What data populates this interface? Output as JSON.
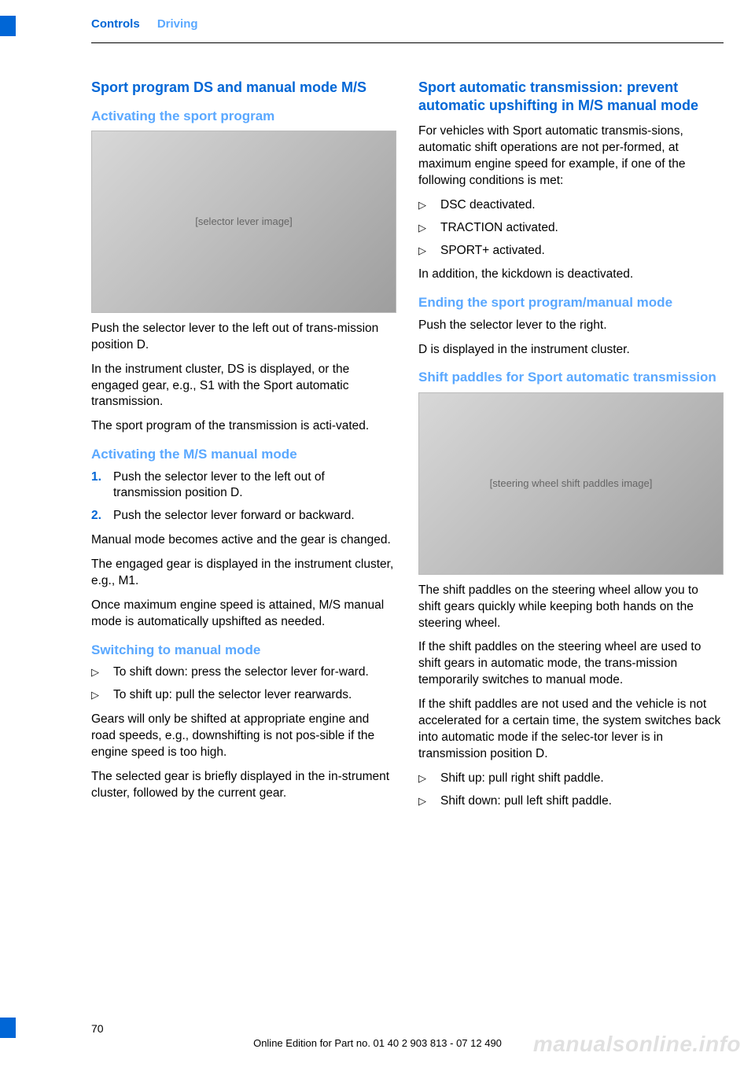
{
  "header": {
    "section": "Controls",
    "subsection": "Driving"
  },
  "left": {
    "h1": "Sport program DS and manual mode M/S",
    "s1": {
      "title": "Activating the sport program",
      "img_alt": "[selector lever image]",
      "p1": "Push the selector lever to the left out of trans‐mission position D.",
      "p2": "In the instrument cluster, DS is displayed, or the engaged gear, e.g., S1 with the Sport automatic transmission.",
      "p3": "The sport program of the transmission is acti‐vated."
    },
    "s2": {
      "title": "Activating the M/S manual mode",
      "li1": "Push the selector lever to the left out of transmission position D.",
      "li2": "Push the selector lever forward or backward.",
      "p1": "Manual mode becomes active and the gear is changed.",
      "p2": "The engaged gear is displayed in the instrument cluster, e.g., M1.",
      "p3": "Once maximum engine speed is attained, M/S manual mode is automatically upshifted as needed."
    },
    "s3": {
      "title": "Switching to manual mode",
      "li1": "To shift down: press the selector lever for‐ward.",
      "li2": "To shift up: pull the selector lever rearwards.",
      "p1": "Gears will only be shifted at appropriate engine and road speeds, e.g., downshifting is not pos‐sible if the engine speed is too high.",
      "p2": "The selected gear is briefly displayed in the in‐strument cluster, followed by the current gear."
    }
  },
  "right": {
    "s1": {
      "title": "Sport automatic transmission: prevent automatic upshifting in M/S manual mode",
      "p1": "For vehicles with Sport automatic transmis‐sions, automatic shift operations are not per‐formed, at maximum engine speed for example, if one of the following conditions is met:",
      "li1": "DSC deactivated.",
      "li2": "TRACTION activated.",
      "li3": "SPORT+ activated.",
      "p2": "In addition, the kickdown is deactivated."
    },
    "s2": {
      "title": "Ending the sport program/manual mode",
      "p1": "Push the selector lever to the right.",
      "p2": "D is displayed in the instrument cluster."
    },
    "s3": {
      "title": "Shift paddles for Sport automatic transmission",
      "img_alt": "[steering wheel shift paddles image]",
      "p1": "The shift paddles on the steering wheel allow you to shift gears quickly while keeping both hands on the steering wheel.",
      "p2": "If the shift paddles on the steering wheel are used to shift gears in automatic mode, the trans‐mission temporarily switches to manual mode.",
      "p3": "If the shift paddles are not used and the vehicle is not accelerated for a certain time, the system switches back into automatic mode if the selec‐tor lever is in transmission position D.",
      "li1": "Shift up: pull right shift paddle.",
      "li2": "Shift down: pull left shift paddle."
    }
  },
  "footer": {
    "page": "70",
    "line": "Online Edition for Part no. 01 40 2 903 813 - 07 12 490",
    "watermark": "manualsonline.info"
  },
  "colors": {
    "blue": "#0066d6",
    "lightblue": "#5aa8ff"
  }
}
